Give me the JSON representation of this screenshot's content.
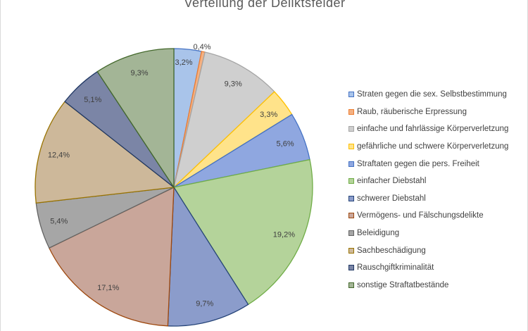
{
  "chart_data": {
    "type": "pie",
    "title": "Verteilung  der Deliktsfelder",
    "start_angle_deg": 0,
    "direction": "clockwise",
    "series": [
      {
        "name": "Straten gegen die sex. Selbstbestimmung",
        "value": 3.2,
        "label": "3,2%",
        "color": "#a9c4ea",
        "stroke": "#4472c4"
      },
      {
        "name": "Raub, räuberische Erpressung",
        "value": 0.4,
        "label": "0,4%",
        "color": "#f4b183",
        "stroke": "#ed7d31"
      },
      {
        "name": "einfache und fahrlässige Körperverletzung",
        "value": 9.3,
        "label": "9,3%",
        "color": "#cfcfcf",
        "stroke": "#a5a5a5"
      },
      {
        "name": "gefährliche und schwere Körperverletzung",
        "value": 3.3,
        "label": "3,3%",
        "color": "#ffe38a",
        "stroke": "#ffc000"
      },
      {
        "name": "Straftaten gegen die pers. Freiheit",
        "value": 5.6,
        "label": "5,6%",
        "color": "#8fa7e0",
        "stroke": "#4472c4"
      },
      {
        "name": "einfacher Diebstahl",
        "value": 19.2,
        "label": "19,2%",
        "color": "#b4d39a",
        "stroke": "#70ad47"
      },
      {
        "name": "schwerer Diebstahl",
        "value": 9.7,
        "label": "9,7%",
        "color": "#8b9ccb",
        "stroke": "#264478"
      },
      {
        "name": "Vermögens- und Fälschungsdelikte",
        "value": 17.1,
        "label": "17,1%",
        "color": "#c9a69a",
        "stroke": "#9e480e"
      },
      {
        "name": "Beleidigung",
        "value": 5.4,
        "label": "5,4%",
        "color": "#a6a6a6",
        "stroke": "#636363"
      },
      {
        "name": "Sachbeschädigung",
        "value": 12.4,
        "label": "12,4%",
        "color": "#cdb89a",
        "stroke": "#997300"
      },
      {
        "name": "Rauschgiftkriminalität",
        "value": 5.1,
        "label": "5,1%",
        "color": "#7b85a6",
        "stroke": "#203864"
      },
      {
        "name": "sonstige Straftatbestände",
        "value": 9.3,
        "label": "9,3%",
        "color": "#a3b596",
        "stroke": "#43682b"
      }
    ]
  }
}
